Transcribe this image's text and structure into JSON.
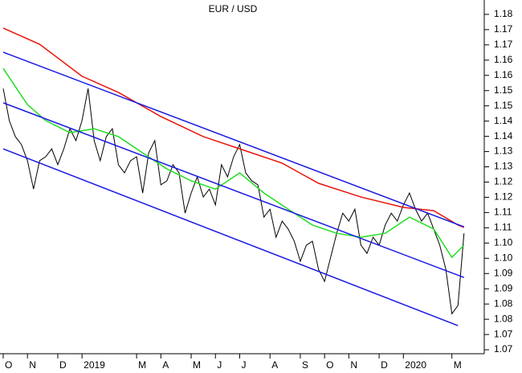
{
  "chart_data": {
    "type": "line",
    "title": "EUR / USD",
    "categories": [
      "O",
      null,
      null,
      null,
      "N",
      null,
      null,
      null,
      null,
      "D",
      null,
      null,
      null,
      "2019",
      null,
      null,
      null,
      null,
      null,
      null,
      null,
      null,
      "M",
      null,
      null,
      null,
      "A",
      null,
      null,
      null,
      null,
      "M",
      null,
      null,
      null,
      "J",
      null,
      null,
      null,
      "J",
      null,
      null,
      null,
      null,
      "A",
      null,
      null,
      null,
      null,
      "S",
      null,
      null,
      null,
      "O",
      null,
      null,
      null,
      "N",
      null,
      null,
      null,
      null,
      "D",
      null,
      null,
      null,
      "2020",
      null,
      null,
      null,
      null,
      null,
      null,
      null,
      "M",
      null,
      null
    ],
    "series": [
      {
        "name": "EUR / USD",
        "color": "#000000",
        "values": [
          1.1557,
          1.1452,
          1.1399,
          1.1373,
          1.132,
          1.1227,
          1.132,
          1.1333,
          1.1359,
          1.1307,
          1.1359,
          1.1425,
          1.1386,
          1.1452,
          1.1557,
          1.1386,
          1.132,
          1.1399,
          1.1425,
          1.1307,
          1.128,
          1.132,
          1.1333,
          1.1214,
          1.1346,
          1.1386,
          1.1241,
          1.1254,
          1.1307,
          1.128,
          1.1148,
          1.1214,
          1.1267,
          1.1201,
          1.1227,
          1.1175,
          1.1307,
          1.1267,
          1.1333,
          1.1373,
          1.128,
          1.1254,
          1.1241,
          1.1135,
          1.1161,
          1.1069,
          1.1122,
          1.1096,
          1.1056,
          1.099,
          1.1043,
          1.1056,
          1.0964,
          1.0924,
          1.1003,
          1.1082,
          1.1148,
          1.1122,
          1.1161,
          1.1043,
          1.1016,
          1.1069,
          1.1043,
          1.1109,
          1.1148,
          1.1122,
          1.1175,
          1.1214,
          1.1161,
          1.1122,
          1.1148,
          1.1096,
          1.1043,
          1.0964,
          1.0818,
          1.0845,
          1.1082
        ]
      },
      {
        "name": "red",
        "color": "#e8140a",
        "x": [
          0,
          6,
          13,
          19,
          26,
          33,
          39,
          46,
          52,
          59,
          66,
          71,
          75,
          76
        ],
        "values": [
          1.1755,
          1.1702,
          1.1597,
          1.1544,
          1.1465,
          1.1399,
          1.1359,
          1.1312,
          1.1246,
          1.1201,
          1.1167,
          1.1156,
          1.1109,
          1.1101
        ]
      },
      {
        "name": "green",
        "color": "#22dd22",
        "x": [
          0,
          4,
          7,
          11,
          15,
          19,
          23,
          27,
          31,
          35,
          39,
          43,
          47,
          51,
          55,
          59,
          63,
          67,
          71,
          74,
          76
        ],
        "values": [
          1.1623,
          1.1504,
          1.1452,
          1.1412,
          1.1425,
          1.1399,
          1.1346,
          1.1293,
          1.1254,
          1.1227,
          1.128,
          1.1214,
          1.1161,
          1.1109,
          1.1082,
          1.1069,
          1.1082,
          1.1135,
          1.1096,
          1.1003,
          1.1043
        ]
      },
      {
        "name": "channel-top",
        "color": "#1a1ae0",
        "x": [
          0,
          76
        ],
        "values": [
          1.1676,
          1.1103
        ]
      },
      {
        "name": "channel-mid",
        "color": "#1a1ae0",
        "x": [
          0,
          76
        ],
        "values": [
          1.151,
          1.0937
        ]
      },
      {
        "name": "channel-bottom",
        "color": "#1a1ae0",
        "x": [
          0,
          75
        ],
        "values": [
          1.1359,
          1.0779
        ]
      }
    ],
    "ylim": [
      1.0687,
      1.1834
    ],
    "yticks": [
      1.18,
      {
        "value": 1.175,
        "label": "1.17"
      },
      1.17,
      {
        "value": 1.165,
        "label": "1.16"
      },
      1.16,
      {
        "value": 1.155,
        "label": "1.15"
      },
      1.15,
      {
        "value": 1.145,
        "label": "1.14"
      },
      1.14,
      {
        "value": 1.135,
        "label": "1.13"
      },
      1.13,
      {
        "value": 1.125,
        "label": "1.12"
      },
      1.12,
      {
        "value": 1.115,
        "label": "1.11"
      },
      1.11,
      {
        "value": 1.105,
        "label": "1.10"
      },
      {
        "value": 1.1,
        "label": "1.10"
      },
      {
        "value": 1.095,
        "label": "1.09"
      },
      1.09,
      {
        "value": 1.085,
        "label": "1.08"
      },
      1.08,
      {
        "value": 1.075,
        "label": "1.07"
      },
      1.07
    ]
  }
}
